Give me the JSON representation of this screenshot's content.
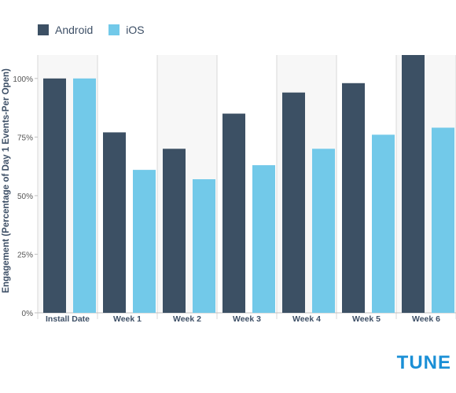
{
  "chart_data": {
    "type": "bar",
    "title": "",
    "xlabel": "",
    "ylabel": "Engagement (Percentage of Day 1 Events-Per Open)",
    "categories": [
      "Install Date",
      "Week 1",
      "Week 2",
      "Week 3",
      "Week 4",
      "Week 5",
      "Week 6"
    ],
    "series": [
      {
        "name": "Android",
        "color": "#3c5064",
        "values": [
          100,
          77,
          70,
          85,
          94,
          98,
          110
        ]
      },
      {
        "name": "iOS",
        "color": "#72c9e9",
        "values": [
          100,
          61,
          57,
          63,
          70,
          76,
          79
        ]
      }
    ],
    "yticks": [
      0,
      25,
      50,
      75,
      100
    ],
    "ytick_labels": [
      "0%",
      "25%",
      "50%",
      "75%",
      "100%"
    ],
    "ylim": [
      0,
      110
    ],
    "grid": false,
    "legend_position": "top-left"
  },
  "logo": {
    "text": "TUNE",
    "color": "#1a8fd6"
  }
}
